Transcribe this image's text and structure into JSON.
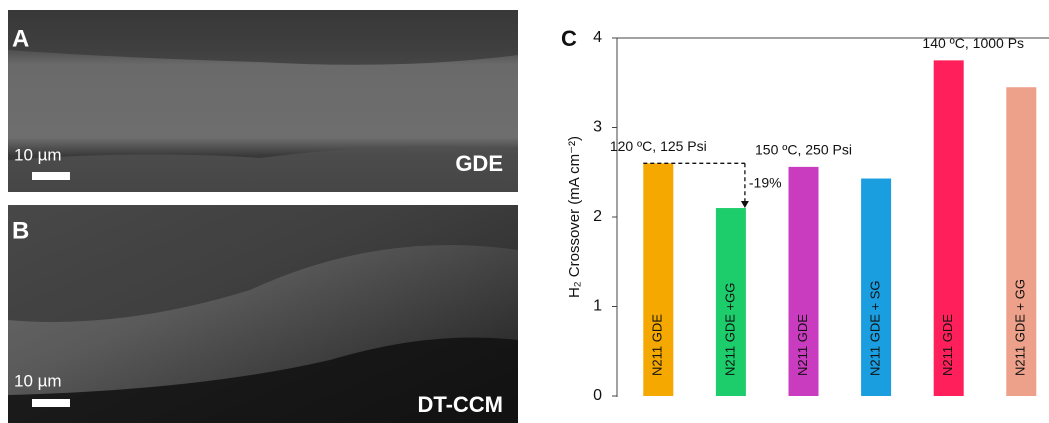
{
  "panels": [
    {
      "label": "A",
      "scale_bar": "10 µm",
      "caption": "GDE"
    },
    {
      "label": "B",
      "scale_bar": "10 µm",
      "caption": "DT-CCM"
    }
  ],
  "chart_data": {
    "type": "bar",
    "panel_label": "C",
    "y_label": "H₂ Crossover (mA cm⁻²)",
    "categories": [
      "N211 GDE",
      "N211 GDE +GG",
      "N211 GDE",
      "N211 GDE + SG",
      "N211 GDE",
      "N211 GDE + GG"
    ],
    "values": [
      2.6,
      2.1,
      2.56,
      2.43,
      3.75,
      3.45
    ],
    "colors": [
      "#f5a800",
      "#1dcc6b",
      "#c93bbf",
      "#1a9ee0",
      "#ff1f5b",
      "#eda08a"
    ],
    "annotations": [
      "120 ºC, 125 Psi",
      "150 ºC, 250 Psi",
      "140 ºC, 1000 Ps",
      "-19%"
    ],
    "ylim": [
      0,
      4
    ],
    "yticks": [
      0,
      1,
      2,
      3,
      4
    ]
  }
}
